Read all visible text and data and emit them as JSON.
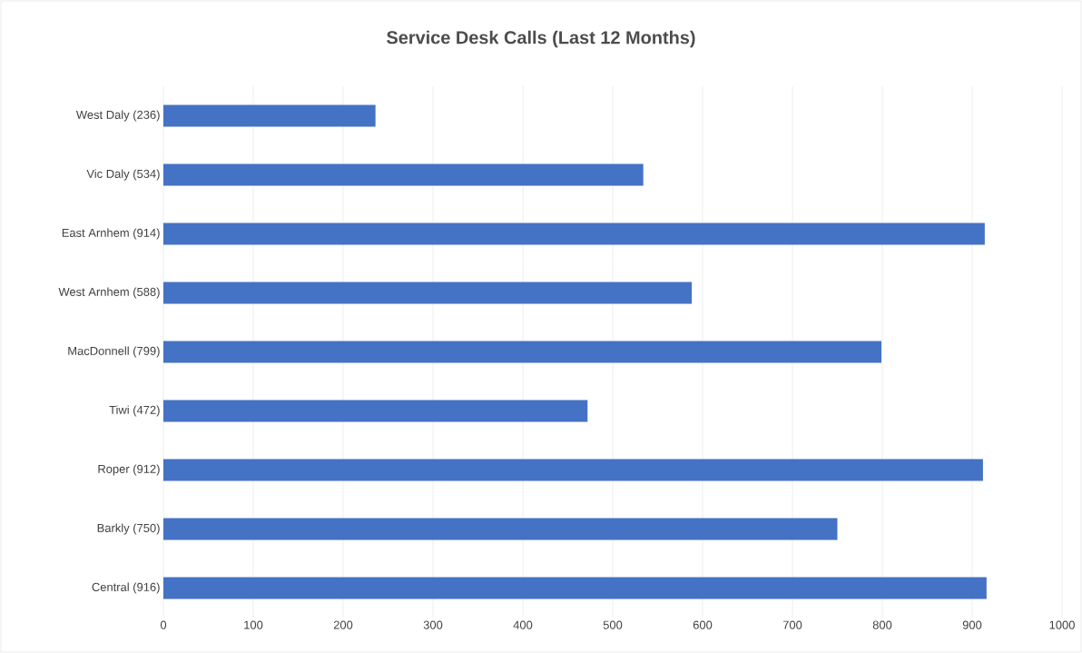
{
  "chart_data": {
    "type": "bar",
    "orientation": "horizontal",
    "title": "Service Desk Calls (Last 12 Months)",
    "categories": [
      "West Daly (236)",
      "Vic Daly (534)",
      "East Arnhem (914)",
      "West Arnhem (588)",
      "MacDonnell (799)",
      "Tiwi (472)",
      "Roper (912)",
      "Barkly (750)",
      "Central (916)"
    ],
    "values": [
      236,
      534,
      914,
      588,
      799,
      472,
      912,
      750,
      916
    ],
    "color": "#4472c4",
    "xlim": [
      0,
      1000
    ],
    "xticks": [
      0,
      100,
      200,
      300,
      400,
      500,
      600,
      700,
      800,
      900,
      1000
    ],
    "grid": "x"
  }
}
